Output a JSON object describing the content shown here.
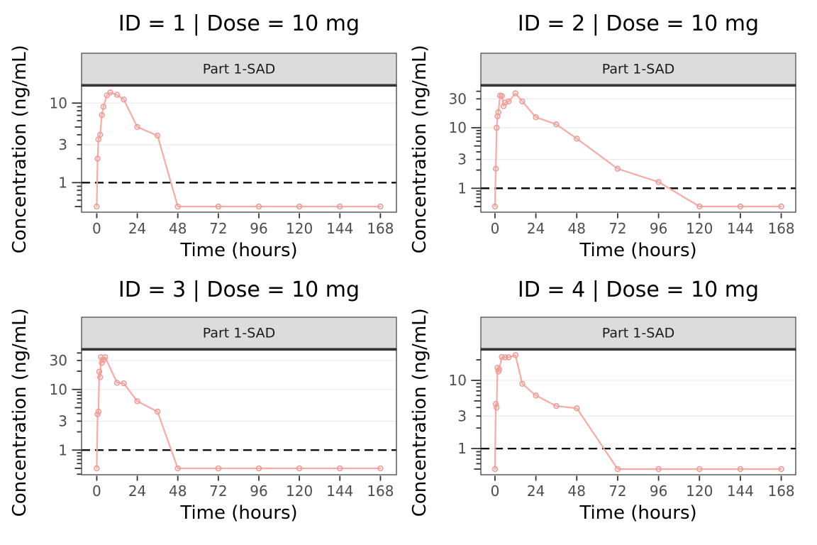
{
  "page": {
    "background": "#FFFFFF"
  },
  "figure": {
    "x_axis_title": "Time (hours)",
    "y_axis_title": "Concentration (ng/mL)",
    "strip_label": "Part 1-SAD",
    "x_ticks": [
      0,
      24,
      48,
      72,
      96,
      120,
      144,
      168
    ],
    "lloq_value": 1,
    "colors": {
      "line": "#F8AAA3",
      "marker": "#F09A92",
      "strip_bg": "#DCDCDC",
      "strip_border": "#333333",
      "panel_border": "#404040",
      "grid": "#EBEBEB",
      "tick": "#333333",
      "tick_label": "#4D4D4D",
      "title": "#000000",
      "lloq_line": "#000000"
    }
  },
  "chart_data": [
    {
      "type": "line",
      "panel_title": "ID = 1 | Dose = 10 mg",
      "facet_label": "Part 1-SAD",
      "xlabel": "Time (hours)",
      "ylabel": "Concentration (ng/mL)",
      "x_ticks": [
        0,
        24,
        48,
        72,
        96,
        120,
        144,
        168
      ],
      "y_ticks": [
        1,
        3,
        10
      ],
      "y_scale": "log",
      "xlim": [
        -9,
        177.5
      ],
      "ylim": [
        0.425,
        16.3
      ],
      "lloq": 1,
      "points": [
        [
          0,
          0.5
        ],
        [
          0.5,
          2.0
        ],
        [
          1,
          3.5
        ],
        [
          2,
          4.0
        ],
        [
          3,
          7.1
        ],
        [
          4,
          9.0
        ],
        [
          6,
          12.5
        ],
        [
          8,
          13.6
        ],
        [
          12,
          12.7
        ],
        [
          16,
          11.1
        ],
        [
          24,
          5.0
        ],
        [
          36,
          3.9
        ],
        [
          48,
          0.5
        ],
        [
          72,
          0.5
        ],
        [
          96,
          0.5
        ],
        [
          120,
          0.5
        ],
        [
          144,
          0.5
        ],
        [
          168,
          0.5
        ]
      ]
    },
    {
      "type": "line",
      "panel_title": "ID = 2 | Dose = 10 mg",
      "facet_label": "Part 1-SAD",
      "xlabel": "Time (hours)",
      "ylabel": "Concentration (ng/mL)",
      "x_ticks": [
        0,
        24,
        48,
        72,
        96,
        120,
        144,
        168
      ],
      "y_ticks": [
        1,
        3,
        10,
        30
      ],
      "y_scale": "log",
      "xlim": [
        -8.3,
        176.5
      ],
      "ylim": [
        0.403,
        48.5
      ],
      "lloq": 1,
      "points": [
        [
          0,
          0.5
        ],
        [
          0.5,
          2.1
        ],
        [
          1,
          10
        ],
        [
          1.5,
          15.5
        ],
        [
          2,
          18
        ],
        [
          3,
          34
        ],
        [
          4,
          33.5
        ],
        [
          5,
          22.7
        ],
        [
          6,
          26
        ],
        [
          8,
          27.2
        ],
        [
          12,
          37
        ],
        [
          16,
          27.2
        ],
        [
          24,
          14.9
        ],
        [
          36,
          11.4
        ],
        [
          48,
          6.6
        ],
        [
          72,
          2.1
        ],
        [
          96,
          1.27
        ],
        [
          120,
          0.5
        ],
        [
          144,
          0.5
        ],
        [
          168,
          0.5
        ]
      ]
    },
    {
      "type": "line",
      "panel_title": "ID = 3 | Dose = 10 mg",
      "facet_label": "Part 1-SAD",
      "xlabel": "Time (hours)",
      "ylabel": "Concentration (ng/mL)",
      "x_ticks": [
        0,
        24,
        48,
        72,
        96,
        120,
        144,
        168
      ],
      "y_ticks": [
        1,
        3,
        10,
        30
      ],
      "y_scale": "log",
      "xlim": [
        -9,
        177.5
      ],
      "ylim": [
        0.392,
        44.4
      ],
      "lloq": 1,
      "points": [
        [
          0,
          0.5
        ],
        [
          0.5,
          3.9
        ],
        [
          1,
          4.3
        ],
        [
          1.5,
          19.7
        ],
        [
          2,
          16
        ],
        [
          2.5,
          34
        ],
        [
          3,
          27.5
        ],
        [
          4,
          31
        ],
        [
          5,
          34
        ],
        [
          12,
          12.9
        ],
        [
          16,
          12.6
        ],
        [
          24,
          6.4
        ],
        [
          36,
          4.3
        ],
        [
          48,
          0.5
        ],
        [
          72,
          0.5
        ],
        [
          96,
          0.5
        ],
        [
          120,
          0.5
        ],
        [
          144,
          0.5
        ],
        [
          168,
          0.5
        ]
      ]
    },
    {
      "type": "line",
      "panel_title": "ID = 4 | Dose = 10 mg",
      "facet_label": "Part 1-SAD",
      "xlabel": "Time (hours)",
      "ylabel": "Concentration (ng/mL)",
      "x_ticks": [
        0,
        24,
        48,
        72,
        96,
        120,
        144,
        168
      ],
      "y_ticks": [
        1,
        3,
        10
      ],
      "y_scale": "log",
      "xlim": [
        -8.3,
        176.5
      ],
      "ylim": [
        0.413,
        27.7
      ],
      "lloq": 1,
      "points": [
        [
          0,
          0.5
        ],
        [
          0.5,
          4.5
        ],
        [
          1,
          4.0
        ],
        [
          1.5,
          15.3
        ],
        [
          2,
          13.5
        ],
        [
          2.5,
          14.5
        ],
        [
          4,
          22
        ],
        [
          6,
          21.7
        ],
        [
          8,
          21.8
        ],
        [
          12,
          23.5
        ],
        [
          16,
          8.9
        ],
        [
          24,
          6.0
        ],
        [
          36,
          4.2
        ],
        [
          48,
          3.9
        ],
        [
          72,
          0.5
        ],
        [
          96,
          0.5
        ],
        [
          120,
          0.5
        ],
        [
          144,
          0.5
        ],
        [
          168,
          0.5
        ]
      ]
    }
  ]
}
